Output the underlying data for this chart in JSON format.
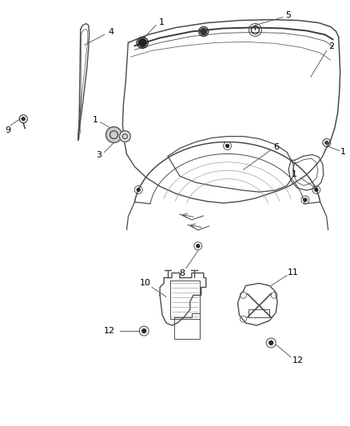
{
  "background_color": "#ffffff",
  "line_color": "#4a4a4a",
  "text_color": "#000000",
  "fig_width": 4.38,
  "fig_height": 5.33,
  "dpi": 100,
  "label_fontsize": 8.0
}
